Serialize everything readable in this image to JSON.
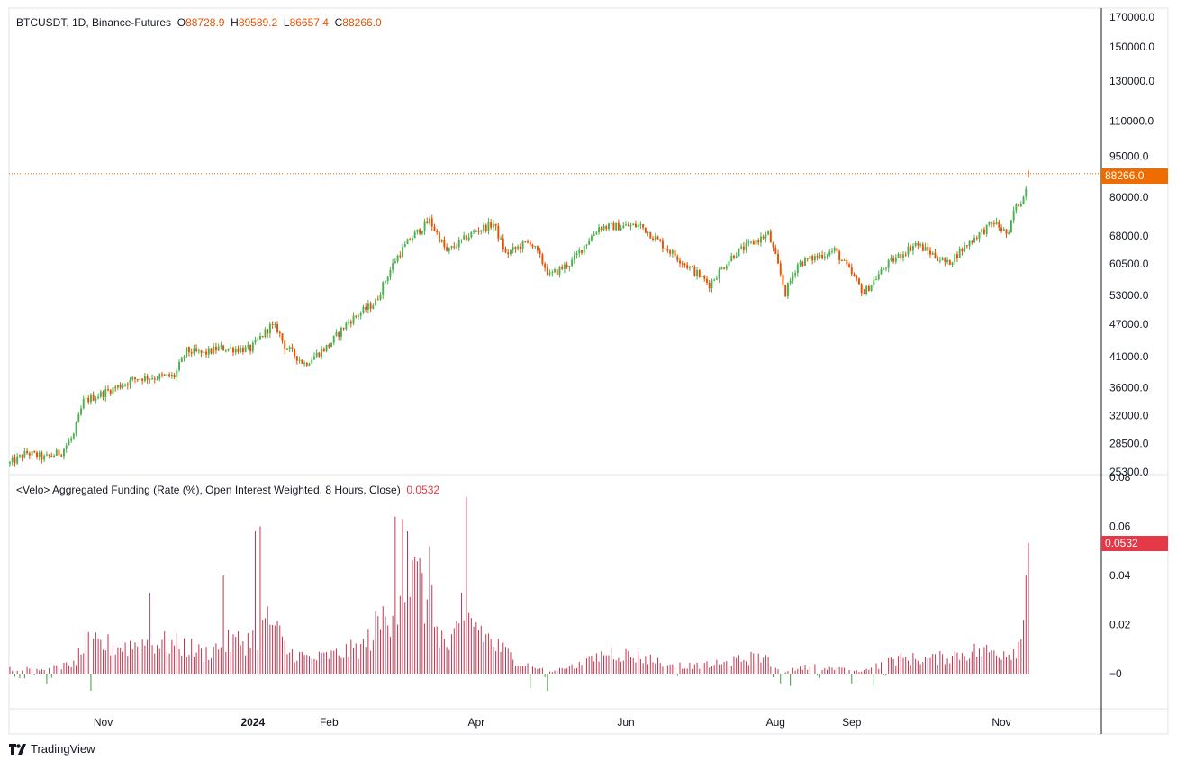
{
  "price_legend": {
    "symbol": "BTCUSDT, 1D, Binance-Futures",
    "o_label": "O",
    "o_value": "88728.9",
    "h_label": "H",
    "h_value": "89589.2",
    "l_label": "L",
    "l_value": "86657.4",
    "c_label": "C",
    "c_value": "88266.0"
  },
  "funding_legend": {
    "title": "<Velo> Aggregated Funding (Rate (%), Open Interest Weighted, 8 Hours, Close)",
    "value": "0.0532"
  },
  "brand": "TradingView",
  "colors": {
    "up": "#4caf50",
    "down": "#e65100",
    "funding_pos": "#c2344f",
    "funding_neg": "#3f9a44",
    "price_badge": "#ef6c00",
    "funding_badge": "#e53948",
    "grid_border": "#e0e3eb"
  },
  "chart_data": [
    {
      "type": "candlestick",
      "title": "BTCUSDT, 1D, Binance-Futures",
      "scale": "log",
      "y_ticks": [
        25300,
        28500,
        32000,
        36000,
        41000,
        47000,
        53000,
        60500,
        68000,
        80000,
        95000,
        110000,
        130000,
        150000,
        170000
      ],
      "x_ticks": [
        "Nov",
        "2024",
        "Feb",
        "Apr",
        "Jun",
        "Aug",
        "Sep",
        "Nov"
      ],
      "last_price": "88266.0",
      "price_path": [
        [
          "2023-09-24",
          26200
        ],
        [
          "2023-10-01",
          27400
        ],
        [
          "2023-10-08",
          26800
        ],
        [
          "2023-10-15",
          27500
        ],
        [
          "2023-10-20",
          29500
        ],
        [
          "2023-10-24",
          34000
        ],
        [
          "2023-11-01",
          35200
        ],
        [
          "2023-11-15",
          37500
        ],
        [
          "2023-11-30",
          37800
        ],
        [
          "2023-12-05",
          42000
        ],
        [
          "2023-12-12",
          41500
        ],
        [
          "2023-12-18",
          42500
        ],
        [
          "2023-12-31",
          42300
        ],
        [
          "2024-01-08",
          46500
        ],
        [
          "2024-01-11",
          46000
        ],
        [
          "2024-01-14",
          42800
        ],
        [
          "2024-01-22",
          39800
        ],
        [
          "2024-02-01",
          43000
        ],
        [
          "2024-02-09",
          47500
        ],
        [
          "2024-02-20",
          51500
        ],
        [
          "2024-02-28",
          61500
        ],
        [
          "2024-03-05",
          67000
        ],
        [
          "2024-03-13",
          72500
        ],
        [
          "2024-03-20",
          63500
        ],
        [
          "2024-04-01",
          69500
        ],
        [
          "2024-04-08",
          71500
        ],
        [
          "2024-04-13",
          63000
        ],
        [
          "2024-04-23",
          66500
        ],
        [
          "2024-05-01",
          57500
        ],
        [
          "2024-05-10",
          61000
        ],
        [
          "2024-05-21",
          70500
        ],
        [
          "2024-06-07",
          71000
        ],
        [
          "2024-06-15",
          66000
        ],
        [
          "2024-06-24",
          61000
        ],
        [
          "2024-07-05",
          55500
        ],
        [
          "2024-07-15",
          63000
        ],
        [
          "2024-07-29",
          68500
        ],
        [
          "2024-08-05",
          53500
        ],
        [
          "2024-08-10",
          60500
        ],
        [
          "2024-08-25",
          64000
        ],
        [
          "2024-09-06",
          53500
        ],
        [
          "2024-09-15",
          60000
        ],
        [
          "2024-09-27",
          65800
        ],
        [
          "2024-10-10",
          60500
        ],
        [
          "2024-10-21",
          67500
        ],
        [
          "2024-10-29",
          72000
        ],
        [
          "2024-11-04",
          68000
        ],
        [
          "2024-11-06",
          75500
        ],
        [
          "2024-11-10",
          80000
        ],
        [
          "2024-11-12",
          88266
        ]
      ]
    },
    {
      "type": "histogram",
      "title": "<Velo> Aggregated Funding (Rate (%), Open Interest Weighted, 8 Hours, Close)",
      "y_ticks": [
        "0.08",
        "0.06",
        "0.04",
        "0.02",
        "0"
      ],
      "last_value": "0.0532",
      "funding_path": [
        [
          "2023-09-24",
          0.002
        ],
        [
          "2023-10-10",
          0.002
        ],
        [
          "2023-10-20",
          0.004
        ],
        [
          "2023-10-25",
          0.012
        ],
        [
          "2023-11-10",
          0.011
        ],
        [
          "2023-11-20",
          0.013
        ],
        [
          "2023-12-05",
          0.011
        ],
        [
          "2023-12-12",
          0.008
        ],
        [
          "2023-12-20",
          0.012
        ],
        [
          "2024-01-01",
          0.014
        ],
        [
          "2024-01-08",
          0.022
        ],
        [
          "2024-01-15",
          0.009
        ],
        [
          "2024-01-25",
          0.006
        ],
        [
          "2024-02-05",
          0.008
        ],
        [
          "2024-02-15",
          0.011
        ],
        [
          "2024-02-25",
          0.025
        ],
        [
          "2024-03-05",
          0.04
        ],
        [
          "2024-03-12",
          0.03
        ],
        [
          "2024-03-20",
          0.01
        ],
        [
          "2024-03-30",
          0.022
        ],
        [
          "2024-04-08",
          0.012
        ],
        [
          "2024-04-20",
          0.004
        ],
        [
          "2024-05-01",
          0.001
        ],
        [
          "2024-05-15",
          0.004
        ],
        [
          "2024-05-25",
          0.009
        ],
        [
          "2024-06-10",
          0.006
        ],
        [
          "2024-06-25",
          0.003
        ],
        [
          "2024-07-10",
          0.004
        ],
        [
          "2024-07-25",
          0.007
        ],
        [
          "2024-08-05",
          0.001
        ],
        [
          "2024-08-15",
          0.003
        ],
        [
          "2024-09-05",
          0.001
        ],
        [
          "2024-09-20",
          0.006
        ],
        [
          "2024-10-05",
          0.006
        ],
        [
          "2024-10-20",
          0.009
        ],
        [
          "2024-11-05",
          0.009
        ],
        [
          "2024-11-09",
          0.013
        ],
        [
          "2024-11-12",
          0.045
        ]
      ],
      "spikes": [
        [
          "2023-11-20",
          0.033
        ],
        [
          "2023-12-20",
          0.04
        ],
        [
          "2024-01-02",
          0.058
        ],
        [
          "2024-01-04",
          0.06
        ],
        [
          "2024-02-28",
          0.064
        ],
        [
          "2024-03-02",
          0.063
        ],
        [
          "2024-03-04",
          0.058
        ],
        [
          "2024-03-09",
          0.047
        ],
        [
          "2024-03-13",
          0.052
        ],
        [
          "2024-03-26",
          0.033
        ],
        [
          "2024-03-28",
          0.072
        ],
        [
          "2024-11-11",
          0.04
        ],
        [
          "2024-11-12",
          0.0532
        ]
      ],
      "negatives": [
        [
          "2023-10-09",
          -0.004
        ],
        [
          "2023-10-27",
          -0.007
        ],
        [
          "2024-04-23",
          -0.006
        ],
        [
          "2024-04-30",
          -0.007
        ],
        [
          "2024-06-22",
          -0.001
        ],
        [
          "2024-08-03",
          -0.004
        ],
        [
          "2024-08-07",
          -0.005
        ],
        [
          "2024-09-01",
          -0.004
        ],
        [
          "2024-09-10",
          -0.005
        ]
      ]
    }
  ]
}
